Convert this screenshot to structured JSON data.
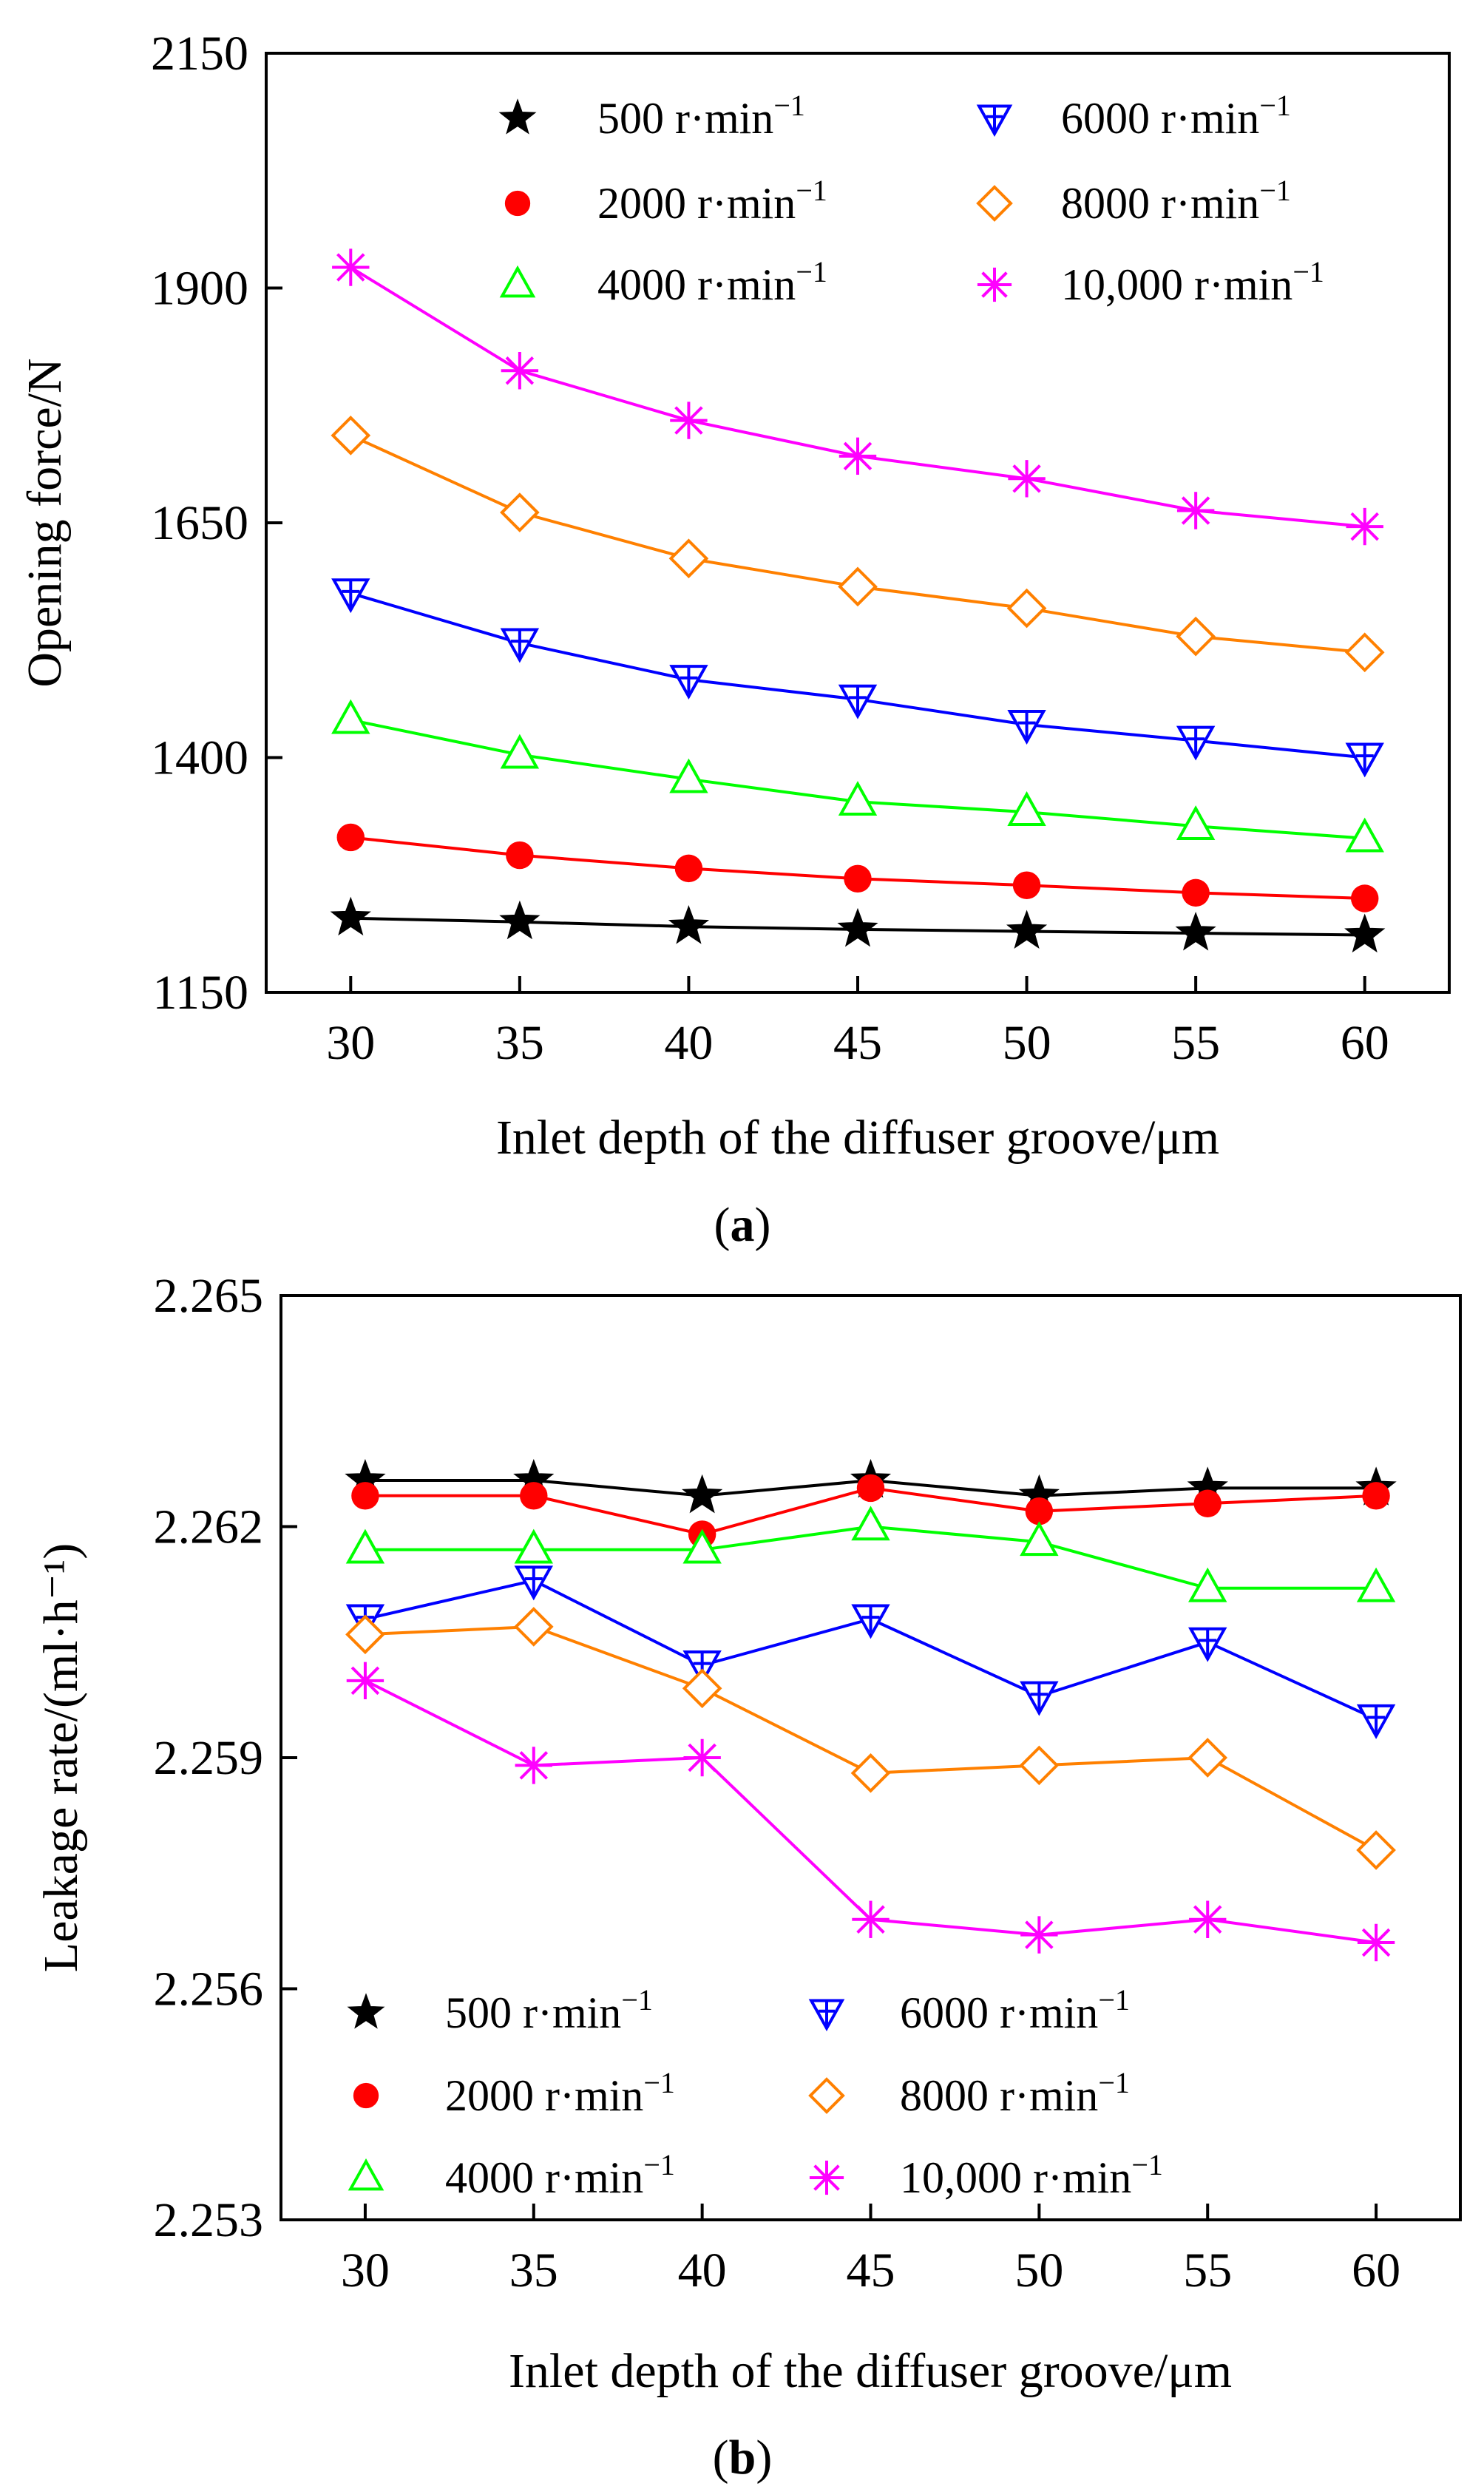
{
  "chart_data": [
    {
      "type": "line",
      "panel": "a",
      "xlabel": "Inlet depth of the diffuser groove/μm",
      "ylabel": "Opening force/N",
      "x": [
        30,
        35,
        40,
        45,
        50,
        55,
        60
      ],
      "xticks": [
        "30",
        "35",
        "40",
        "45",
        "50",
        "55",
        "60"
      ],
      "xlim": [
        27.5,
        62.5
      ],
      "ylim": [
        1150,
        2150
      ],
      "yticks": [
        "1150",
        "1400",
        "1650",
        "1900",
        "2150"
      ],
      "legend_position": "top",
      "series": [
        {
          "name": "500 r·min",
          "exp": "−1",
          "marker": "star",
          "color": "#000000",
          "values": [
            1229,
            1225,
            1220,
            1217,
            1215,
            1213,
            1211
          ]
        },
        {
          "name": "2000 r·min",
          "exp": "−1",
          "marker": "circle",
          "color": "#ff0000",
          "values": [
            1315,
            1296,
            1282,
            1271,
            1264,
            1256,
            1250
          ]
        },
        {
          "name": "4000 r·min",
          "exp": "−1",
          "marker": "triangle",
          "color": "#00ff00",
          "values": [
            1440,
            1403,
            1377,
            1353,
            1342,
            1327,
            1314
          ]
        },
        {
          "name": "6000 r·min",
          "exp": "−1",
          "marker": "tri-down-cross",
          "color": "#0000ff",
          "values": [
            1575,
            1522,
            1483,
            1462,
            1435,
            1418,
            1400
          ]
        },
        {
          "name": "8000 r·min",
          "exp": "−1",
          "marker": "diamond",
          "color": "#ff8000",
          "values": [
            1743,
            1661,
            1612,
            1582,
            1559,
            1529,
            1512
          ]
        },
        {
          "name": "10,000 r·min",
          "exp": "−1",
          "marker": "asterisk",
          "color": "#ff00ff",
          "values": [
            1922,
            1812,
            1759,
            1721,
            1697,
            1663,
            1646
          ]
        }
      ]
    },
    {
      "type": "line",
      "panel": "b",
      "xlabel": "Inlet depth of the diffuser groove/μm",
      "ylabel": "Leakage rate/(ml·h⁻¹)",
      "x": [
        30,
        35,
        40,
        45,
        50,
        55,
        60
      ],
      "xticks": [
        "30",
        "35",
        "40",
        "45",
        "50",
        "55",
        "60"
      ],
      "xlim": [
        27.5,
        62.5
      ],
      "ylim": [
        2.253,
        2.265
      ],
      "yticks": [
        "2.253",
        "2.256",
        "2.259",
        "2.262",
        "2.265"
      ],
      "legend_position": "bottom",
      "series": [
        {
          "name": "500 r·min",
          "exp": "−1",
          "marker": "star",
          "color": "#000000",
          "values": [
            2.2626,
            2.2626,
            2.2624,
            2.2626,
            2.2624,
            2.2625,
            2.2625
          ]
        },
        {
          "name": "2000 r·min",
          "exp": "−1",
          "marker": "circle",
          "color": "#ff0000",
          "values": [
            2.2624,
            2.2624,
            2.2619,
            2.2625,
            2.2622,
            2.2623,
            2.2624
          ]
        },
        {
          "name": "4000 r·min",
          "exp": "−1",
          "marker": "triangle",
          "color": "#00ff00",
          "values": [
            2.2617,
            2.2617,
            2.2617,
            2.262,
            2.2618,
            2.2612,
            2.2612
          ]
        },
        {
          "name": "6000 r·min",
          "exp": "−1",
          "marker": "tri-down-cross",
          "color": "#0000ff",
          "values": [
            2.2608,
            2.2613,
            2.2602,
            2.2608,
            2.2598,
            2.2605,
            2.2595
          ]
        },
        {
          "name": "8000 r·min",
          "exp": "−1",
          "marker": "diamond",
          "color": "#ff8000",
          "values": [
            2.2606,
            2.2607,
            2.2599,
            2.2588,
            2.2589,
            2.259,
            2.2578
          ]
        },
        {
          "name": "10,000 r·min",
          "exp": "−1",
          "marker": "asterisk",
          "color": "#ff00ff",
          "values": [
            2.26,
            2.2589,
            2.259,
            2.2569,
            2.2567,
            2.2569,
            2.2566
          ]
        }
      ]
    }
  ],
  "panel_labels": {
    "a": "a",
    "b": "b"
  }
}
